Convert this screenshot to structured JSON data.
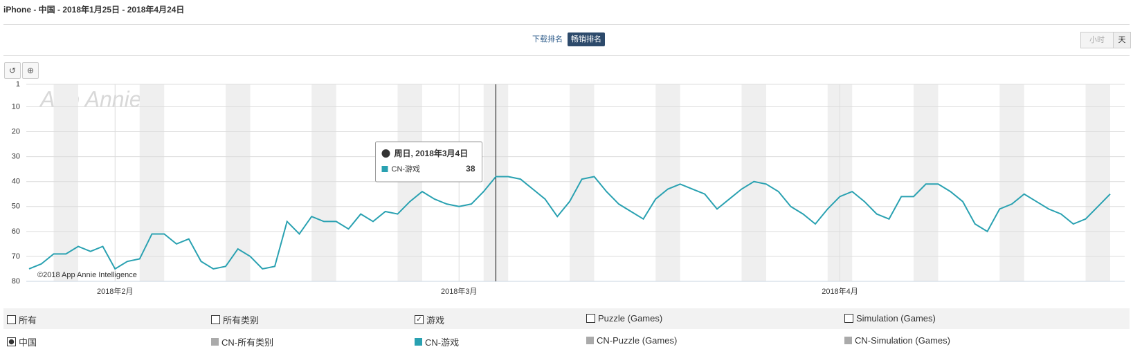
{
  "header": {
    "title": "iPhone - 中国 - 2018年1月25日 - 2018年4月24日"
  },
  "tabs": [
    "下载排名",
    "畅销排名"
  ],
  "granularity": [
    "小时",
    "天"
  ],
  "filters": {
    "categories": [
      {
        "label": "所有",
        "checked": false
      },
      {
        "label": "所有类别",
        "checked": false
      },
      {
        "label": "游戏",
        "checked": true
      },
      {
        "label": "Puzzle (Games)",
        "checked": false
      },
      {
        "label": "Simulation (Games)",
        "checked": false
      }
    ],
    "country": {
      "label": "中国",
      "checked": true
    },
    "legend": [
      {
        "label": "CN-所有类别",
        "color": "#aaaaaa"
      },
      {
        "label": "CN-Puzzle (Games)",
        "color": "#aaaaaa"
      },
      {
        "label": "CN-Simulation (Games)",
        "color": "#aaaaaa"
      }
    ]
  },
  "chart_data": {
    "type": "line",
    "watermark": "App Annie",
    "credit": "©2018 App Annie Intelligence",
    "x": [
      "2018-01-25",
      "2018-01-26",
      "2018-01-27",
      "2018-01-28",
      "2018-01-29",
      "2018-01-30",
      "2018-01-31",
      "2018-02-01",
      "2018-02-02",
      "2018-02-03",
      "2018-02-04",
      "2018-02-05",
      "2018-02-06",
      "2018-02-07",
      "2018-02-08",
      "2018-02-09",
      "2018-02-10",
      "2018-02-11",
      "2018-02-12",
      "2018-02-13",
      "2018-02-14",
      "2018-02-15",
      "2018-02-16",
      "2018-02-17",
      "2018-02-18",
      "2018-02-19",
      "2018-02-20",
      "2018-02-21",
      "2018-02-22",
      "2018-02-23",
      "2018-02-24",
      "2018-02-25",
      "2018-02-26",
      "2018-02-27",
      "2018-02-28",
      "2018-03-01",
      "2018-03-02",
      "2018-03-03",
      "2018-03-04",
      "2018-03-05",
      "2018-03-06",
      "2018-03-07",
      "2018-03-08",
      "2018-03-09",
      "2018-03-10",
      "2018-03-11",
      "2018-03-12",
      "2018-03-13",
      "2018-03-14",
      "2018-03-15",
      "2018-03-16",
      "2018-03-17",
      "2018-03-18",
      "2018-03-19",
      "2018-03-20",
      "2018-03-21",
      "2018-03-22",
      "2018-03-23",
      "2018-03-24",
      "2018-03-25",
      "2018-03-26",
      "2018-03-27",
      "2018-03-28",
      "2018-03-29",
      "2018-03-30",
      "2018-03-31",
      "2018-04-01",
      "2018-04-02",
      "2018-04-03",
      "2018-04-04",
      "2018-04-05",
      "2018-04-06",
      "2018-04-07",
      "2018-04-08",
      "2018-04-09",
      "2018-04-10",
      "2018-04-11",
      "2018-04-12",
      "2018-04-13",
      "2018-04-14",
      "2018-04-15",
      "2018-04-16",
      "2018-04-17",
      "2018-04-18",
      "2018-04-19",
      "2018-04-20",
      "2018-04-21",
      "2018-04-22",
      "2018-04-23"
    ],
    "series": [
      {
        "name": "CN-游戏",
        "color": "#29a1b1",
        "values": [
          75,
          73,
          69,
          69,
          66,
          68,
          66,
          75,
          72,
          71,
          61,
          61,
          65,
          63,
          72,
          75,
          74,
          67,
          70,
          75,
          74,
          56,
          61,
          54,
          56,
          56,
          59,
          53,
          56,
          52,
          53,
          48,
          44,
          47,
          49,
          50,
          49,
          44,
          38,
          38,
          39,
          43,
          47,
          54,
          48,
          39,
          38,
          44,
          49,
          52,
          55,
          47,
          43,
          41,
          43,
          45,
          51,
          47,
          43,
          40,
          41,
          44,
          50,
          53,
          57,
          51,
          46,
          44,
          48,
          53,
          55,
          46,
          46,
          41,
          41,
          44,
          48,
          57,
          60,
          51,
          49,
          45,
          48,
          51,
          53,
          57,
          55,
          50,
          45
        ]
      }
    ],
    "xlim": [
      "2018-01-25",
      "2018-04-23"
    ],
    "xticks": [
      {
        "value": "2018-02-01",
        "label": "2018年2月"
      },
      {
        "value": "2018-03-01",
        "label": "2018年3月"
      },
      {
        "value": "2018-04-01",
        "label": "2018年4月"
      }
    ],
    "ylim": [
      80,
      1
    ],
    "yticks": [
      1,
      10,
      20,
      30,
      40,
      50,
      60,
      70,
      80
    ],
    "grid": true,
    "tooltip": {
      "value": "2018-03-04",
      "label": "周日, 2018年3月4日"
    }
  }
}
